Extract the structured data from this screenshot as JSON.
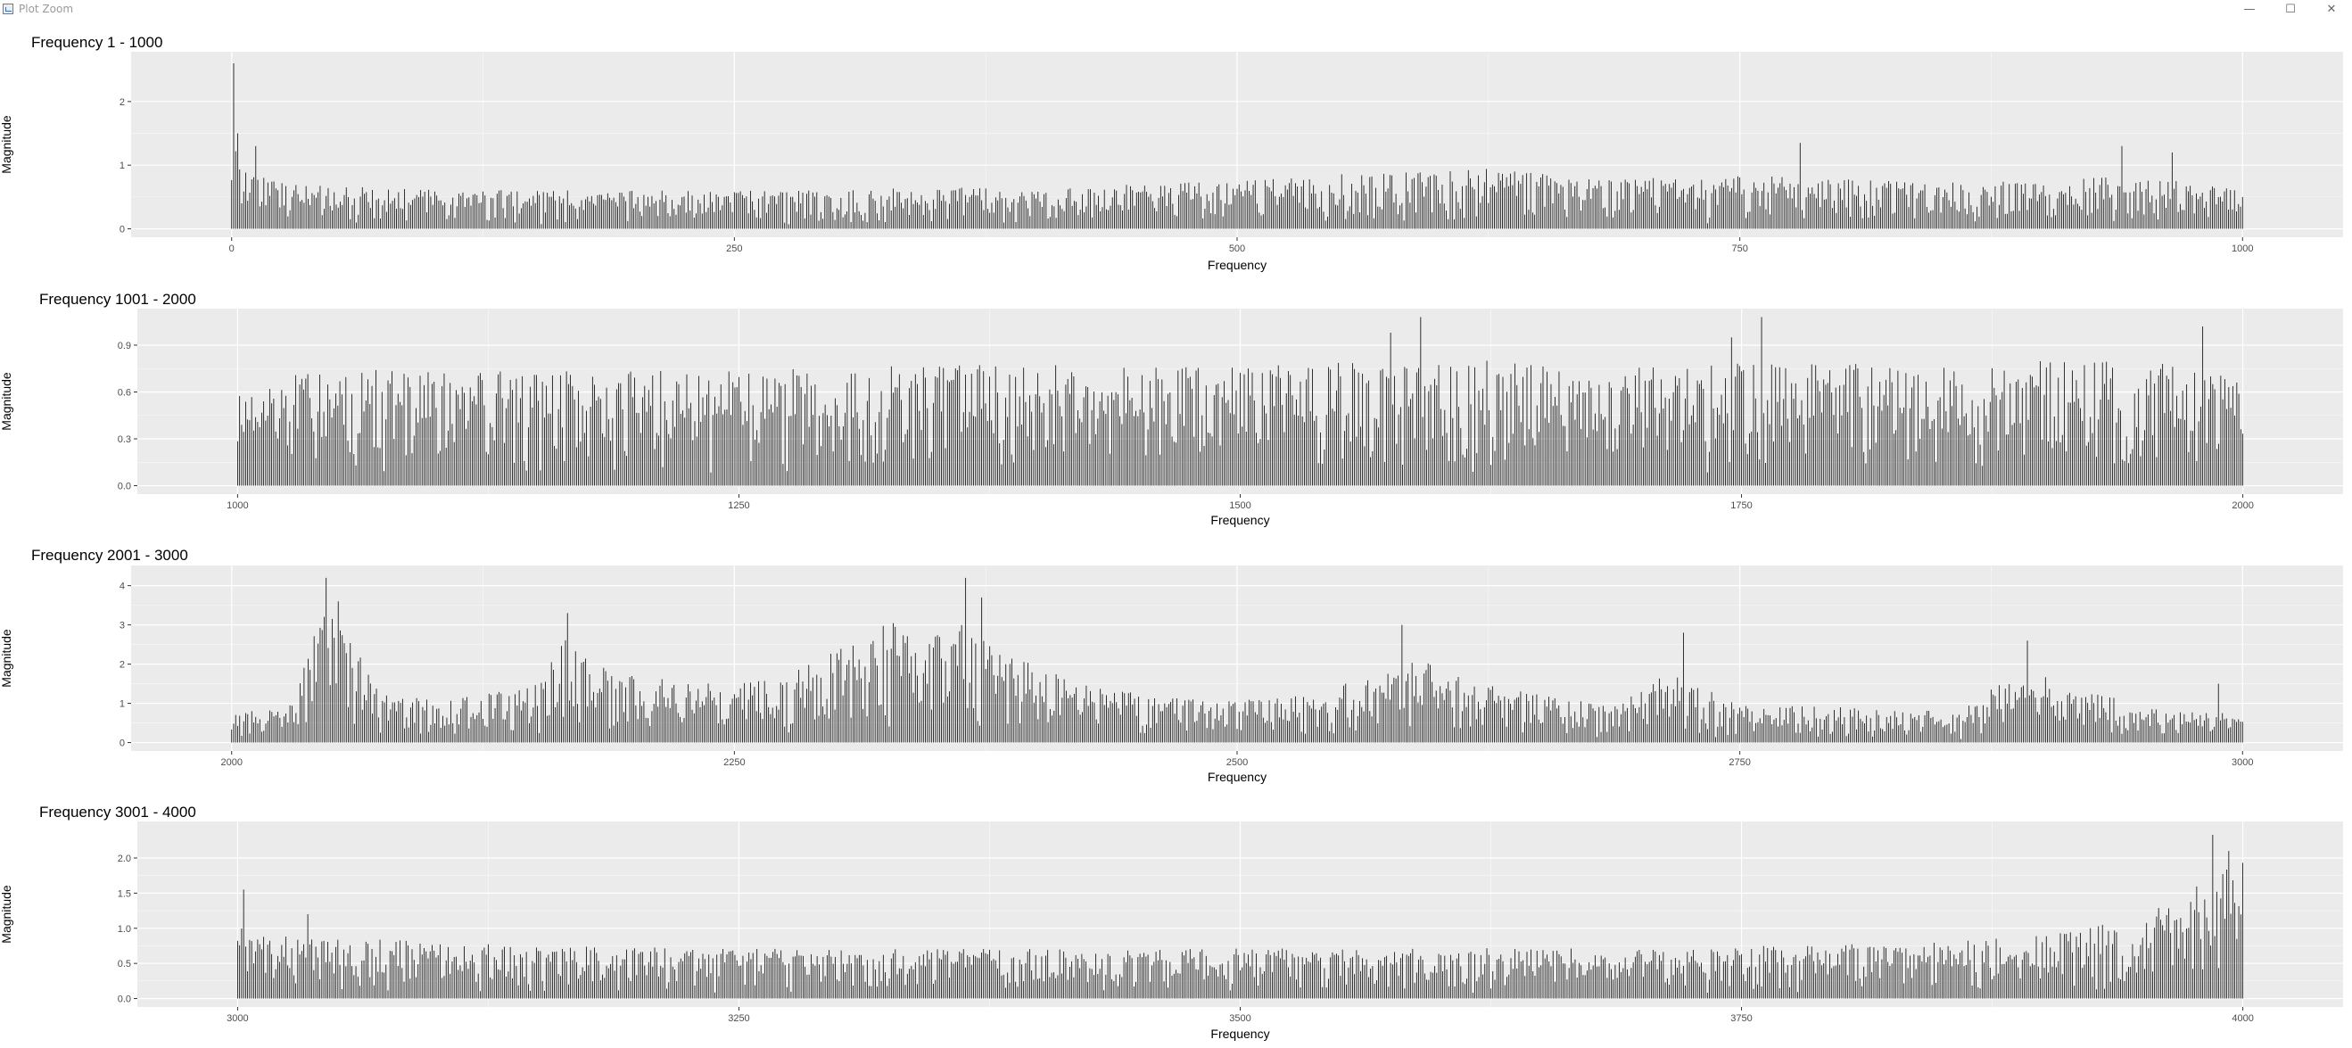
{
  "window": {
    "title": "Plot Zoom",
    "controls": {
      "minimize": "—",
      "maximize": "☐",
      "close": "✕"
    }
  },
  "colors": {
    "panel_background": "#ebebeb",
    "grid_major": "#ffffff",
    "bars": "#000000",
    "tick_text": "#4d4d4d"
  },
  "chart_data": [
    {
      "type": "bar",
      "title": "Frequency 1 - 1000",
      "xlabel": "Frequency",
      "ylabel": "Magnitude",
      "xlim": [
        0,
        1000
      ],
      "ylim": [
        0,
        2.65
      ],
      "xticks": [
        0,
        250,
        500,
        750,
        1000
      ],
      "yticks": [
        0,
        1,
        2
      ],
      "grid": true,
      "envelope": {
        "x": [
          0,
          1,
          3,
          10,
          30,
          100,
          200,
          300,
          400,
          470,
          520,
          570,
          620,
          660,
          700,
          760,
          800,
          850,
          900,
          950,
          1000
        ],
        "y": [
          2.6,
          1.5,
          1.2,
          1.0,
          0.7,
          0.62,
          0.6,
          0.62,
          0.66,
          0.72,
          0.8,
          0.9,
          0.95,
          0.85,
          0.8,
          0.85,
          0.78,
          0.75,
          0.78,
          0.82,
          0.65
        ]
      },
      "peaks": [
        {
          "x": 1,
          "y": 2.6
        },
        {
          "x": 3,
          "y": 1.5
        },
        {
          "x": 12,
          "y": 1.3
        },
        {
          "x": 780,
          "y": 1.35
        },
        {
          "x": 940,
          "y": 1.3
        },
        {
          "x": 965,
          "y": 1.2
        }
      ]
    },
    {
      "type": "bar",
      "title": "Frequency 1001 - 2000",
      "xlabel": "Frequency",
      "ylabel": "Magnitude",
      "xlim": [
        1000,
        2000
      ],
      "ylim": [
        0,
        1.08
      ],
      "xticks": [
        1000,
        1250,
        1500,
        1750,
        2000
      ],
      "yticks": [
        0.0,
        0.3,
        0.6,
        0.9
      ],
      "grid": true,
      "envelope": {
        "x": [
          1000,
          1100,
          1200,
          1300,
          1400,
          1500,
          1550,
          1600,
          1650,
          1700,
          1750,
          1800,
          1900,
          2000
        ],
        "y": [
          0.72,
          0.75,
          0.74,
          0.76,
          0.78,
          0.76,
          0.8,
          0.82,
          0.78,
          0.77,
          0.8,
          0.78,
          0.8,
          0.78
        ]
      },
      "peaks": [
        {
          "x": 1590,
          "y": 1.1
        },
        {
          "x": 1760,
          "y": 1.12
        },
        {
          "x": 1575,
          "y": 0.98
        },
        {
          "x": 1745,
          "y": 0.95
        },
        {
          "x": 1980,
          "y": 1.02
        }
      ]
    },
    {
      "type": "bar",
      "title": "Frequency 2001 - 3000",
      "xlabel": "Frequency",
      "ylabel": "Magnitude",
      "xlim": [
        2000,
        3000
      ],
      "ylim": [
        0,
        4.3
      ],
      "xticks": [
        2000,
        2250,
        2500,
        2750,
        3000
      ],
      "yticks": [
        0,
        1,
        2,
        3,
        4
      ],
      "grid": true,
      "envelope": {
        "x": [
          2000,
          2030,
          2045,
          2060,
          2080,
          2110,
          2150,
          2165,
          2200,
          2250,
          2290,
          2320,
          2355,
          2380,
          2420,
          2480,
          2520,
          2560,
          2585,
          2620,
          2680,
          2715,
          2750,
          2800,
          2860,
          2890,
          2930,
          2970,
          3000
        ],
        "y": [
          0.7,
          1.0,
          3.5,
          2.5,
          1.2,
          1.1,
          1.5,
          2.7,
          1.7,
          1.5,
          2.2,
          3.0,
          3.2,
          2.6,
          1.5,
          1.1,
          1.2,
          1.6,
          2.3,
          1.5,
          1.0,
          1.8,
          1.0,
          0.9,
          0.8,
          1.9,
          1.2,
          0.8,
          0.75
        ]
      },
      "peaks": [
        {
          "x": 2047,
          "y": 4.2
        },
        {
          "x": 2053,
          "y": 3.6
        },
        {
          "x": 2167,
          "y": 3.3
        },
        {
          "x": 2365,
          "y": 4.2
        },
        {
          "x": 2373,
          "y": 3.7
        },
        {
          "x": 2582,
          "y": 3.0
        },
        {
          "x": 2722,
          "y": 2.8
        },
        {
          "x": 2893,
          "y": 2.6
        },
        {
          "x": 2988,
          "y": 1.5
        }
      ]
    },
    {
      "type": "bar",
      "title": "Frequency 3001 - 4000",
      "xlabel": "Frequency",
      "ylabel": "Magnitude",
      "xlim": [
        3000,
        4000
      ],
      "ylim": [
        0,
        2.4
      ],
      "xticks": [
        3000,
        3250,
        3500,
        3750,
        4000
      ],
      "yticks": [
        0.0,
        0.5,
        1.0,
        1.5,
        2.0
      ],
      "grid": true,
      "envelope": {
        "x": [
          3000,
          3005,
          3020,
          3060,
          3150,
          3300,
          3500,
          3700,
          3850,
          3900,
          3940,
          3965,
          3980,
          3995,
          4000
        ],
        "y": [
          1.5,
          1.0,
          0.9,
          0.85,
          0.75,
          0.7,
          0.72,
          0.72,
          0.8,
          0.9,
          1.1,
          1.4,
          1.8,
          2.05,
          2.0
        ]
      },
      "peaks": [
        {
          "x": 3003,
          "y": 1.55
        },
        {
          "x": 3035,
          "y": 1.2
        },
        {
          "x": 3985,
          "y": 2.33
        },
        {
          "x": 3993,
          "y": 2.1
        }
      ]
    }
  ]
}
